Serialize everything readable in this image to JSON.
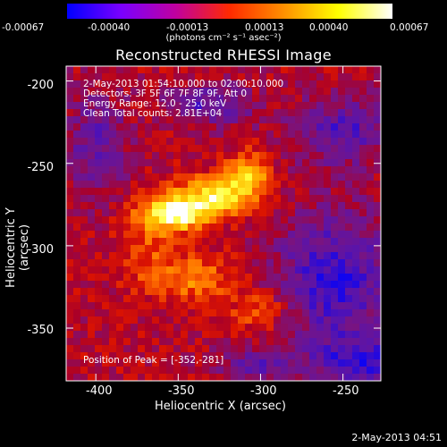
{
  "chart_data": {
    "type": "heatmap",
    "title": "Reconstructed RHESSI Image",
    "xlabel": "Heliocentric X (arcsec)",
    "ylabel": "Heliocentric Y (arcsec)",
    "xlim": [
      -418,
      -227
    ],
    "ylim": [
      -382,
      -191
    ],
    "x_ticks": [
      "-400",
      "-350",
      "-300",
      "-250"
    ],
    "y_ticks": [
      "-200",
      "-250",
      "-300",
      "-350"
    ],
    "colorbar": {
      "ticks": [
        "-0.00067",
        "-0.00040",
        "-0.00013",
        "0.00013",
        "0.00040",
        "0.00067"
      ],
      "unit_label": "(photons cm⁻² s⁻¹ asec⁻²)",
      "range": [
        -0.00067,
        0.00067
      ],
      "colors": [
        "#0000ff",
        "#7a00ff",
        "#c000a0",
        "#ff2a00",
        "#ff9000",
        "#ffff00",
        "#ffffff"
      ]
    },
    "annotations": [
      "2-May-2013 01:54:10.000 to 02:00:10.000",
      "Detectors: 3F 5F 6F 7F 8F 9F, Att 0",
      "Energy Range: 12.0 - 25.0 keV",
      "Clean    Total counts: 2.81E+04"
    ],
    "peak_label": "Position of Peak = [-352,-281]",
    "peak": {
      "x": -352,
      "y": -281
    }
  },
  "footer_timestamp": "2-May-2013 04:51"
}
